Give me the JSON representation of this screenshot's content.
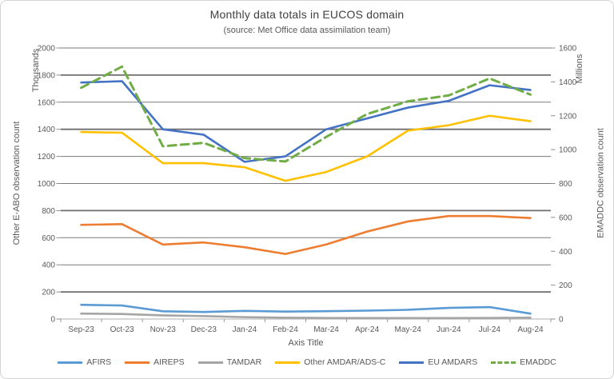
{
  "chart": {
    "title": "Monthly data totals in EUCOS domain",
    "subtitle": "(source: Met Office data assimilation team)"
  },
  "chart_data": {
    "type": "line",
    "title": "Monthly data totals in EUCOS domain",
    "subtitle": "(source: Met Office data assimilation team)",
    "categories": [
      "Sep-23",
      "Oct-23",
      "Nov-23",
      "Dec-23",
      "Jan-24",
      "Feb-24",
      "Mar-24",
      "Apr-24",
      "May-24",
      "Jun-24",
      "Jul-24",
      "Aug-24"
    ],
    "x_axis_title": "Axis Title",
    "left_axis": {
      "title": "Other E-ABO observation count",
      "units_label": "Thousands",
      "min": 0,
      "max": 2000,
      "step": 200,
      "ticks": [
        0,
        200,
        400,
        600,
        800,
        1000,
        1200,
        1400,
        1600,
        1800,
        2000
      ]
    },
    "right_axis": {
      "title": "EMADDC observation count",
      "units_label": "Millions",
      "min": 0,
      "max": 1600,
      "step": 200,
      "ticks": [
        0,
        200,
        400,
        600,
        800,
        1000,
        1200,
        1400,
        1600
      ]
    },
    "grid": true,
    "legend_position": "bottom",
    "series": [
      {
        "name": "AFIRS",
        "color": "#5B9BD5",
        "axis": "left",
        "dashed": false,
        "values": [
          105,
          100,
          57,
          52,
          60,
          55,
          58,
          62,
          68,
          82,
          88,
          40
        ]
      },
      {
        "name": "AIREPS",
        "color": "#ED7D31",
        "axis": "left",
        "dashed": false,
        "values": [
          695,
          700,
          550,
          565,
          530,
          480,
          550,
          645,
          720,
          760,
          760,
          745
        ]
      },
      {
        "name": "TAMDAR",
        "color": "#A5A5A5",
        "axis": "left",
        "dashed": false,
        "values": [
          40,
          37,
          27,
          22,
          14,
          10,
          8,
          7,
          7,
          7,
          8,
          10
        ]
      },
      {
        "name": "Other AMDAR/ADS-C",
        "color": "#FFC000",
        "axis": "left",
        "dashed": false,
        "values": [
          1380,
          1375,
          1150,
          1150,
          1120,
          1020,
          1085,
          1200,
          1390,
          1430,
          1500,
          1460
        ]
      },
      {
        "name": "EU AMDARS",
        "color": "#4472C4",
        "axis": "left",
        "dashed": false,
        "values": [
          1745,
          1755,
          1400,
          1360,
          1160,
          1200,
          1400,
          1480,
          1560,
          1610,
          1725,
          1690
        ]
      },
      {
        "name": "EMADDC",
        "color": "#70AD47",
        "axis": "right",
        "dashed": true,
        "values": [
          1365,
          1490,
          1020,
          1040,
          950,
          930,
          1075,
          1210,
          1285,
          1320,
          1420,
          1325
        ]
      }
    ]
  }
}
